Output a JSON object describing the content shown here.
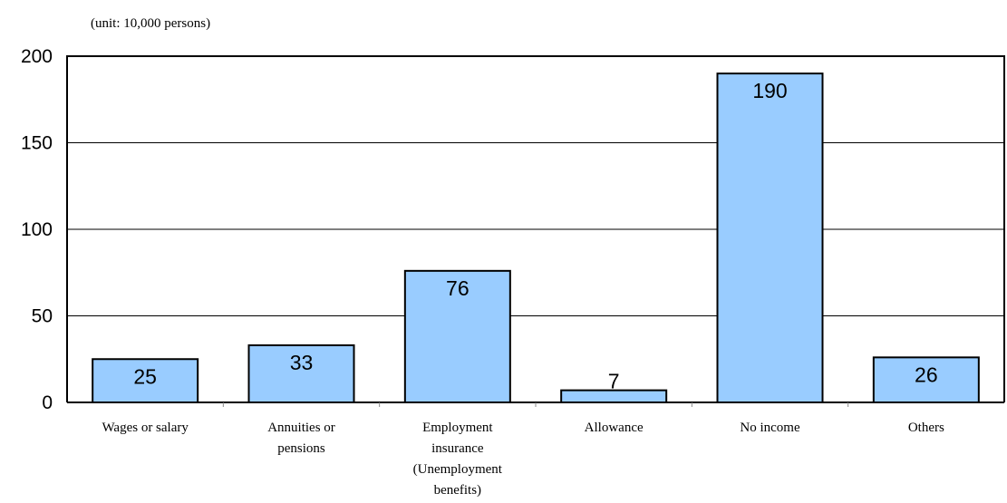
{
  "chart_data": {
    "type": "bar",
    "unit_label": "(unit: 10,000 persons)",
    "categories": [
      "Wages or salary",
      "Annuities or pensions",
      "Employment insurance (Unemployment benefits)",
      "Allowance",
      "No income",
      "Others"
    ],
    "values": [
      25,
      33,
      76,
      7,
      190,
      26
    ],
    "data_labels": [
      "25",
      "33",
      "76",
      "7",
      "190",
      "26"
    ],
    "yticks": [
      "0",
      "50",
      "100",
      "150",
      "200"
    ],
    "ylim": [
      0,
      200
    ],
    "grid": true,
    "bar_color": "#99CCFF",
    "bar_edge_color": "#000000"
  }
}
